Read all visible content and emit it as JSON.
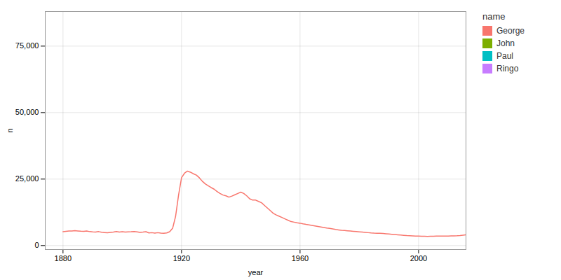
{
  "chart_data": {
    "type": "line",
    "xlabel": "year",
    "ylabel": "n",
    "legend_title": "name",
    "legend": "right",
    "grid": true,
    "xlim": [
      1874,
      2016
    ],
    "ylim": [
      -1500,
      88000
    ],
    "xticks": [
      1880,
      1920,
      1960,
      2000
    ],
    "yticks": [
      0,
      {
        "value": 25000,
        "label": "25,000"
      },
      {
        "value": 50000,
        "label": "50,000"
      },
      {
        "value": 75000,
        "label": "75,000"
      }
    ],
    "x": [
      1880,
      1881,
      1882,
      1883,
      1884,
      1885,
      1886,
      1887,
      1888,
      1889,
      1890,
      1891,
      1892,
      1893,
      1894,
      1895,
      1896,
      1897,
      1898,
      1899,
      1900,
      1901,
      1902,
      1903,
      1904,
      1905,
      1906,
      1907,
      1908,
      1909,
      1910,
      1911,
      1912,
      1913,
      1914,
      1915,
      1916,
      1917,
      1918,
      1919,
      1920,
      1921,
      1922,
      1923,
      1924,
      1925,
      1926,
      1927,
      1928,
      1929,
      1930,
      1931,
      1932,
      1933,
      1934,
      1935,
      1936,
      1937,
      1938,
      1939,
      1940,
      1941,
      1942,
      1943,
      1944,
      1945,
      1946,
      1947,
      1948,
      1949,
      1950,
      1951,
      1952,
      1953,
      1954,
      1955,
      1956,
      1957,
      1958,
      1959,
      1960,
      1961,
      1962,
      1963,
      1964,
      1965,
      1966,
      1967,
      1968,
      1969,
      1970,
      1971,
      1972,
      1973,
      1974,
      1975,
      1976,
      1977,
      1978,
      1979,
      1980,
      1981,
      1982,
      1983,
      1984,
      1985,
      1986,
      1987,
      1988,
      1989,
      1990,
      1991,
      1992,
      1993,
      1994,
      1995,
      1996,
      1997,
      1998,
      1999,
      2000,
      2001,
      2002,
      2003,
      2004,
      2005,
      2006,
      2007,
      2008,
      2009,
      2010,
      2011,
      2012,
      2013,
      2014,
      2015,
      2016
    ],
    "series": [
      {
        "name": "George",
        "color": "#F8766D",
        "values": [
          5200,
          5350,
          5500,
          5450,
          5600,
          5500,
          5400,
          5350,
          5500,
          5250,
          5150,
          5100,
          5250,
          5000,
          4900,
          4800,
          4950,
          5100,
          5300,
          5100,
          5200,
          5050,
          5150,
          5200,
          5300,
          5150,
          4950,
          5050,
          5200,
          4750,
          4850,
          4700,
          4850,
          4700,
          4650,
          4750,
          5200,
          6500,
          11000,
          19000,
          25500,
          27200,
          28000,
          27600,
          27000,
          26500,
          25500,
          24200,
          23200,
          22500,
          21800,
          21200,
          20300,
          19600,
          19000,
          18700,
          18200,
          18600,
          19100,
          19600,
          20100,
          19600,
          18700,
          17600,
          17100,
          17100,
          16600,
          16100,
          15100,
          14100,
          13100,
          12100,
          11500,
          11000,
          10500,
          10000,
          9500,
          9000,
          8800,
          8550,
          8400,
          8150,
          7950,
          7800,
          7600,
          7400,
          7200,
          7000,
          6800,
          6600,
          6450,
          6250,
          6050,
          5900,
          5750,
          5650,
          5550,
          5450,
          5350,
          5250,
          5150,
          5050,
          4950,
          4850,
          4750,
          4680,
          4650,
          4620,
          4550,
          4450,
          4350,
          4250,
          4150,
          4050,
          3950,
          3850,
          3750,
          3700,
          3650,
          3600,
          3550,
          3500,
          3480,
          3460,
          3500,
          3520,
          3550,
          3570,
          3580,
          3580,
          3600,
          3620,
          3650,
          3680,
          3750,
          3900,
          4050
        ]
      },
      {
        "name": "John",
        "color": "#7CAE00",
        "values": [
          null,
          null,
          null,
          null,
          null,
          null,
          null,
          null,
          null,
          null,
          null,
          null,
          null,
          null,
          null,
          null,
          null,
          null,
          null,
          null,
          null,
          null,
          null,
          null,
          null,
          null,
          null,
          null,
          null,
          null,
          null,
          null,
          null,
          null,
          null,
          null,
          null,
          null,
          null,
          null,
          null,
          null,
          null,
          null,
          null,
          null,
          null,
          null,
          null,
          null,
          null,
          null,
          null,
          null,
          null,
          null,
          null,
          null,
          null,
          null,
          null,
          null,
          null,
          null,
          null,
          null,
          null,
          null,
          null,
          null,
          null,
          null,
          null,
          null,
          null,
          null,
          null,
          null,
          null,
          null,
          null,
          null,
          null,
          null,
          null,
          null,
          null,
          null,
          null,
          null,
          null,
          null,
          null,
          null,
          null,
          null,
          null,
          null,
          null,
          null,
          null,
          null,
          null,
          null,
          null,
          null,
          null,
          null,
          null,
          null,
          null,
          null,
          null,
          null,
          null,
          null,
          null,
          null,
          null,
          null,
          null,
          null,
          null,
          null,
          null,
          null,
          null,
          null,
          null,
          null,
          null,
          null,
          null,
          null,
          null,
          null,
          null
        ]
      },
      {
        "name": "Paul",
        "color": "#00BFC4",
        "values": [
          null,
          null,
          null,
          null,
          null,
          null,
          null,
          null,
          null,
          null,
          null,
          null,
          null,
          null,
          null,
          null,
          null,
          null,
          null,
          null,
          null,
          null,
          null,
          null,
          null,
          null,
          null,
          null,
          null,
          null,
          null,
          null,
          null,
          null,
          null,
          null,
          null,
          null,
          null,
          null,
          null,
          null,
          null,
          null,
          null,
          null,
          null,
          null,
          null,
          null,
          null,
          null,
          null,
          null,
          null,
          null,
          null,
          null,
          null,
          null,
          null,
          null,
          null,
          null,
          null,
          null,
          null,
          null,
          null,
          null,
          null,
          null,
          null,
          null,
          null,
          null,
          null,
          null,
          null,
          null,
          null,
          null,
          null,
          null,
          null,
          null,
          null,
          null,
          null,
          null,
          null,
          null,
          null,
          null,
          null,
          null,
          null,
          null,
          null,
          null,
          null,
          null,
          null,
          null,
          null,
          null,
          null,
          null,
          null,
          null,
          null,
          null,
          null,
          null,
          null,
          null,
          null,
          null,
          null,
          null,
          null,
          null,
          null,
          null,
          null,
          null,
          null,
          null,
          null,
          null,
          null,
          null,
          null,
          null,
          null,
          null,
          null
        ]
      },
      {
        "name": "Ringo",
        "color": "#C77CFF",
        "values": [
          null,
          null,
          null,
          null,
          null,
          null,
          null,
          null,
          null,
          null,
          null,
          null,
          null,
          null,
          null,
          null,
          null,
          null,
          null,
          null,
          null,
          null,
          null,
          null,
          null,
          null,
          null,
          null,
          null,
          null,
          null,
          null,
          null,
          null,
          null,
          null,
          null,
          null,
          null,
          null,
          null,
          null,
          null,
          null,
          null,
          null,
          null,
          null,
          null,
          null,
          null,
          null,
          null,
          null,
          null,
          null,
          null,
          null,
          null,
          null,
          null,
          null,
          null,
          null,
          null,
          null,
          null,
          null,
          null,
          null,
          null,
          null,
          null,
          null,
          null,
          null,
          null,
          null,
          null,
          null,
          null,
          null,
          null,
          null,
          null,
          null,
          null,
          null,
          null,
          null,
          null,
          null,
          null,
          null,
          null,
          null,
          null,
          null,
          null,
          null,
          null,
          null,
          null,
          null,
          null,
          null,
          null,
          null,
          null,
          null,
          null,
          null,
          null,
          null,
          null,
          null,
          null,
          null,
          null,
          null,
          null,
          null,
          null,
          null,
          null,
          null,
          null,
          null,
          null,
          null,
          null,
          null,
          null,
          null,
          null,
          null,
          null
        ]
      }
    ]
  }
}
